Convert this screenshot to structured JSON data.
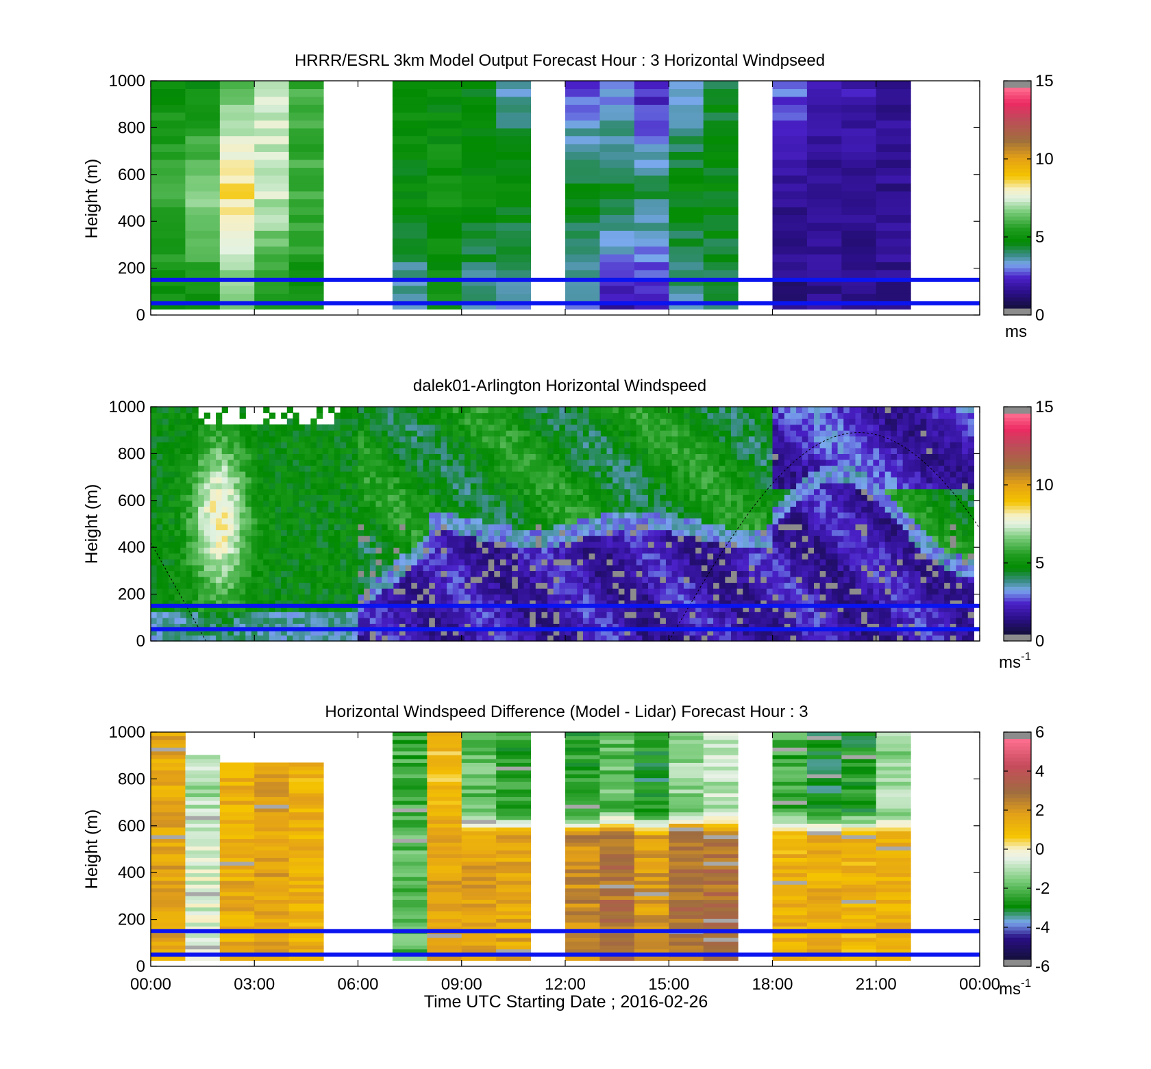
{
  "chart_data": [
    {
      "type": "heatmap",
      "title": "HRRR/ESRL 3km Model Output   Forecast Hour : 3 Horizontal Windpseed",
      "ylabel": "Height (m)",
      "ylim": [
        0,
        1000
      ],
      "yticks": [
        "0",
        "200",
        "400",
        "600",
        "800",
        "1000"
      ],
      "xlim_hours": [
        0,
        24
      ],
      "colorbar": {
        "ticks": [
          "0",
          "5",
          "10",
          "15"
        ],
        "min": 0,
        "max": 15,
        "unit": "ms"
      },
      "reference_lines_m": [
        50,
        150
      ],
      "columns_hours": [
        [
          0,
          1
        ],
        [
          1,
          2
        ],
        [
          2,
          3
        ],
        [
          3,
          4
        ],
        [
          4,
          5
        ],
        [
          7,
          8
        ],
        [
          8,
          9
        ],
        [
          9,
          10
        ],
        [
          10,
          11
        ],
        [
          12,
          13
        ],
        [
          13,
          14
        ],
        [
          14,
          15
        ],
        [
          15,
          16
        ],
        [
          16,
          17
        ],
        [
          18,
          19
        ],
        [
          19,
          20
        ],
        [
          20,
          21
        ],
        [
          21,
          22
        ]
      ],
      "column_top_speed_ms": [
        4.8,
        4.8,
        6.2,
        7.4,
        5.8,
        4.7,
        4.7,
        4.4,
        3.2,
        2.2,
        2.6,
        1.8,
        3.0,
        4.2,
        2.6,
        1.6,
        1.8,
        1.4
      ],
      "column_mid_speed_ms": [
        5.8,
        6.8,
        8.6,
        7.3,
        5.8,
        4.6,
        4.9,
        4.8,
        4.8,
        4.6,
        4.5,
        4.0,
        4.6,
        4.6,
        1.2,
        1.4,
        1.1,
        1.2
      ],
      "column_low_speed_ms": [
        4.9,
        5.0,
        6.2,
        5.0,
        4.9,
        3.2,
        4.8,
        3.4,
        3.0,
        2.9,
        1.6,
        1.6,
        3.4,
        3.8,
        1.0,
        1.2,
        1.2,
        1.2
      ]
    },
    {
      "type": "heatmap",
      "title": "dalek01-Arlington  Horizontal Windspeed",
      "ylabel": "Height (m)",
      "ylim": [
        0,
        1000
      ],
      "yticks": [
        "0",
        "200",
        "400",
        "600",
        "800",
        "1000"
      ],
      "xlim_hours": [
        0,
        24
      ],
      "colorbar": {
        "ticks": [
          "0",
          "5",
          "10",
          "15"
        ],
        "min": 0,
        "max": 15,
        "unit": "ms",
        "unit_exp": "-1"
      },
      "reference_lines_m": [
        50,
        150
      ],
      "regime_note_hours": {
        "strong_jet_center": 2.0,
        "transition": 6.0,
        "low_layer_top_after_6h_m": 500
      }
    },
    {
      "type": "heatmap",
      "title": "Horizontal Windspeed Difference (Model - Lidar) Forecast Hour : 3",
      "ylabel": "Height (m)",
      "xlabel": "Time UTC  Starting Date ; 2016-02-26",
      "ylim": [
        0,
        1000
      ],
      "yticks": [
        "0",
        "200",
        "400",
        "600",
        "800",
        "1000"
      ],
      "xticks": [
        "00:00",
        "03:00",
        "06:00",
        "09:00",
        "12:00",
        "15:00",
        "18:00",
        "21:00",
        "00:00"
      ],
      "xlim_hours": [
        0,
        24
      ],
      "colorbar": {
        "ticks": [
          "-6",
          "-4",
          "-2",
          "0",
          "2",
          "4",
          "6"
        ],
        "min": -6,
        "max": 6,
        "unit": "ms",
        "unit_exp": "-1"
      },
      "reference_lines_m": [
        50,
        150
      ],
      "columns_hours": [
        [
          0,
          1
        ],
        [
          1,
          2
        ],
        [
          2,
          3
        ],
        [
          3,
          4
        ],
        [
          4,
          5
        ],
        [
          7,
          8
        ],
        [
          8,
          9
        ],
        [
          9,
          10
        ],
        [
          10,
          11
        ],
        [
          12,
          13
        ],
        [
          13,
          14
        ],
        [
          14,
          15
        ],
        [
          15,
          16
        ],
        [
          16,
          17
        ],
        [
          18,
          19
        ],
        [
          19,
          20
        ],
        [
          20,
          21
        ],
        [
          21,
          22
        ]
      ],
      "column_top_m": [
        1000,
        910,
        870,
        870,
        870,
        1000,
        1000,
        1000,
        1000,
        1000,
        1000,
        1000,
        1000,
        1000,
        1000,
        1000,
        1000,
        1000
      ],
      "column_upper_diff_ms": [
        1.6,
        -1.2,
        1.4,
        2.0,
        1.3,
        -2.4,
        1.0,
        -2.0,
        -2.6,
        -2.8,
        -2.0,
        -3.0,
        -1.4,
        -1.0,
        -2.4,
        -3.0,
        -2.8,
        -1.4
      ],
      "column_lower_diff_ms": [
        1.8,
        -0.6,
        1.5,
        1.8,
        1.3,
        -2.0,
        1.8,
        1.8,
        1.6,
        2.4,
        3.0,
        2.0,
        3.0,
        3.0,
        1.3,
        1.4,
        1.3,
        1.3
      ]
    }
  ]
}
